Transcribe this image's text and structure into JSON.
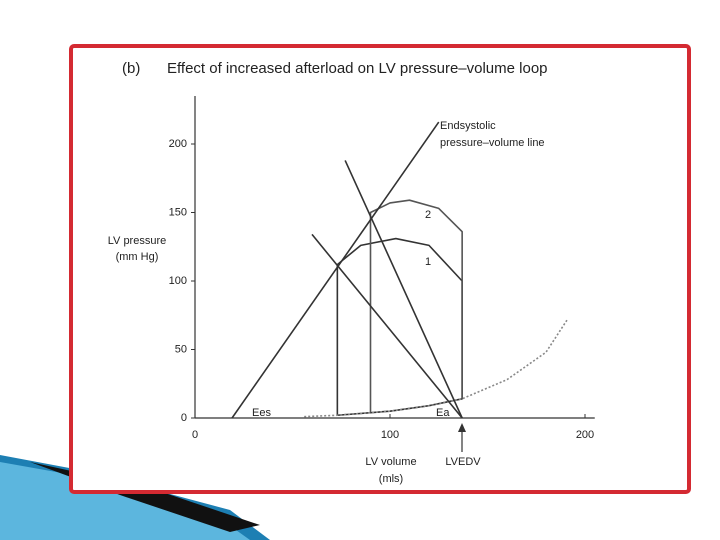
{
  "chart_data": {
    "type": "line",
    "panel_label": "(b)",
    "title": "Effect of increased afterload on LV pressure–volume loop",
    "xlabel": [
      "LV volume",
      "(mls)"
    ],
    "ylabel": [
      "LV pressure",
      "(mm Hg)"
    ],
    "xlim": [
      0,
      205
    ],
    "ylim": [
      0,
      235
    ],
    "xticks": [
      0,
      100,
      200
    ],
    "yticks": [
      0,
      50,
      100,
      150,
      200
    ],
    "series": [
      {
        "color": "#333333",
        "x": [
          73,
          73,
          85,
          103,
          120,
          137,
          137,
          120,
          100,
          73
        ],
        "values": [
          2,
          112,
          126,
          131,
          126,
          100,
          14,
          9,
          5,
          2
        ]
      },
      {
        "color": "#555555",
        "x": [
          90,
          90,
          100,
          110,
          125,
          137,
          137
        ],
        "values": [
          4,
          150,
          157,
          159,
          153,
          136,
          14
        ]
      },
      {
        "color": "#888888",
        "dashed": true,
        "x": [
          56,
          73,
          100,
          120,
          137,
          160,
          180,
          191
        ],
        "values": [
          1,
          2,
          5,
          9,
          14,
          28,
          48,
          72
        ]
      },
      {
        "color": "#333333",
        "x": [
          19,
          125
        ],
        "values": [
          0,
          216
        ]
      },
      {
        "color": "#333333",
        "x": [
          77,
          137
        ],
        "values": [
          188,
          0
        ]
      },
      {
        "color": "#333333",
        "x": [
          60,
          137
        ],
        "values": [
          134,
          0
        ]
      }
    ],
    "annotations": [
      [
        "Endsystolic",
        "pressure–volume line"
      ],
      "2",
      "1",
      "Ees",
      "Ea",
      "LVEDV"
    ]
  }
}
